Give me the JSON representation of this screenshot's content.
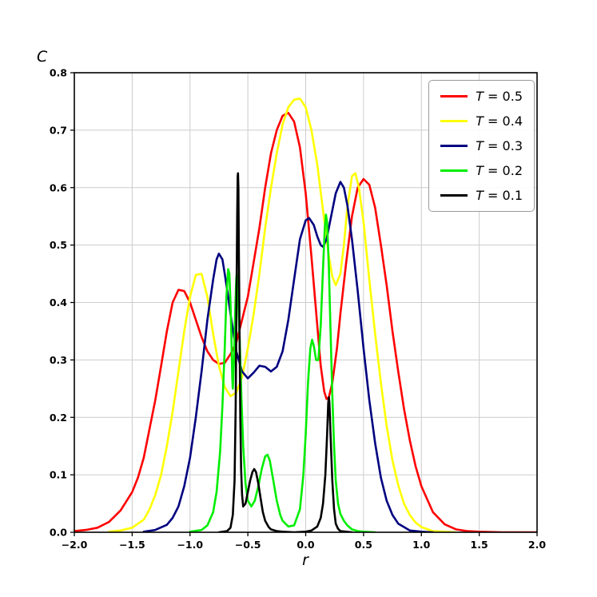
{
  "figure": {
    "background": "#ffffff"
  },
  "chart_data": {
    "type": "line",
    "title": "",
    "xlabel": "r",
    "ylabel": "C",
    "xlim": [
      -2.0,
      2.0
    ],
    "ylim": [
      0.0,
      0.8
    ],
    "grid": true,
    "grid_color": "#cccccc",
    "xticks": [
      -2.0,
      -1.5,
      -1.0,
      -0.5,
      0.0,
      0.5,
      1.0,
      1.5,
      2.0
    ],
    "xtick_labels": [
      "−2.0",
      "−1.5",
      "−1.0",
      "−0.5",
      "0.0",
      "0.5",
      "1.0",
      "1.5",
      "2.0"
    ],
    "yticks": [
      0.0,
      0.1,
      0.2,
      0.3,
      0.4,
      0.5,
      0.6,
      0.7,
      0.8
    ],
    "ytick_labels": [
      "0.0",
      "0.1",
      "0.2",
      "0.3",
      "0.4",
      "0.5",
      "0.6",
      "0.7",
      "0.8"
    ],
    "legend": {
      "position": "upper right",
      "items": [
        {
          "label": "T = 0.5",
          "color": "#ff0000"
        },
        {
          "label": "T = 0.4",
          "color": "#ffff00"
        },
        {
          "label": "T = 0.3",
          "color": "#000080"
        },
        {
          "label": "T = 0.2",
          "color": "#00ee00"
        },
        {
          "label": "T = 0.1",
          "color": "#000000"
        }
      ]
    },
    "series": [
      {
        "name": "T = 0.5",
        "color": "#ff0000",
        "points": [
          [
            -2.0,
            0.002
          ],
          [
            -1.9,
            0.004
          ],
          [
            -1.8,
            0.008
          ],
          [
            -1.7,
            0.018
          ],
          [
            -1.6,
            0.038
          ],
          [
            -1.5,
            0.07
          ],
          [
            -1.45,
            0.095
          ],
          [
            -1.4,
            0.13
          ],
          [
            -1.35,
            0.18
          ],
          [
            -1.3,
            0.23
          ],
          [
            -1.25,
            0.29
          ],
          [
            -1.2,
            0.35
          ],
          [
            -1.15,
            0.4
          ],
          [
            -1.1,
            0.422
          ],
          [
            -1.05,
            0.42
          ],
          [
            -1.0,
            0.4
          ],
          [
            -0.95,
            0.37
          ],
          [
            -0.9,
            0.34
          ],
          [
            -0.85,
            0.315
          ],
          [
            -0.8,
            0.3
          ],
          [
            -0.75,
            0.293
          ],
          [
            -0.7,
            0.295
          ],
          [
            -0.65,
            0.31
          ],
          [
            -0.6,
            0.33
          ],
          [
            -0.55,
            0.37
          ],
          [
            -0.5,
            0.41
          ],
          [
            -0.45,
            0.47
          ],
          [
            -0.4,
            0.53
          ],
          [
            -0.35,
            0.6
          ],
          [
            -0.3,
            0.66
          ],
          [
            -0.25,
            0.7
          ],
          [
            -0.2,
            0.725
          ],
          [
            -0.15,
            0.73
          ],
          [
            -0.1,
            0.715
          ],
          [
            -0.05,
            0.67
          ],
          [
            0.0,
            0.59
          ],
          [
            0.05,
            0.48
          ],
          [
            0.1,
            0.36
          ],
          [
            0.13,
            0.29
          ],
          [
            0.16,
            0.245
          ],
          [
            0.18,
            0.232
          ],
          [
            0.2,
            0.235
          ],
          [
            0.23,
            0.26
          ],
          [
            0.27,
            0.32
          ],
          [
            0.3,
            0.38
          ],
          [
            0.35,
            0.47
          ],
          [
            0.4,
            0.55
          ],
          [
            0.45,
            0.6
          ],
          [
            0.5,
            0.615
          ],
          [
            0.55,
            0.605
          ],
          [
            0.6,
            0.565
          ],
          [
            0.65,
            0.5
          ],
          [
            0.7,
            0.43
          ],
          [
            0.75,
            0.35
          ],
          [
            0.8,
            0.28
          ],
          [
            0.85,
            0.215
          ],
          [
            0.9,
            0.16
          ],
          [
            0.95,
            0.115
          ],
          [
            1.0,
            0.08
          ],
          [
            1.1,
            0.035
          ],
          [
            1.2,
            0.014
          ],
          [
            1.3,
            0.005
          ],
          [
            1.4,
            0.002
          ],
          [
            1.5,
            0.001
          ],
          [
            1.7,
            0.0
          ],
          [
            2.0,
            0.0
          ]
        ]
      },
      {
        "name": "T = 0.4",
        "color": "#ffff00",
        "points": [
          [
            -1.7,
            0.001
          ],
          [
            -1.6,
            0.003
          ],
          [
            -1.5,
            0.008
          ],
          [
            -1.4,
            0.022
          ],
          [
            -1.35,
            0.04
          ],
          [
            -1.3,
            0.065
          ],
          [
            -1.25,
            0.1
          ],
          [
            -1.2,
            0.15
          ],
          [
            -1.15,
            0.21
          ],
          [
            -1.1,
            0.28
          ],
          [
            -1.05,
            0.35
          ],
          [
            -1.0,
            0.41
          ],
          [
            -0.95,
            0.448
          ],
          [
            -0.9,
            0.45
          ],
          [
            -0.85,
            0.41
          ],
          [
            -0.8,
            0.345
          ],
          [
            -0.75,
            0.29
          ],
          [
            -0.7,
            0.253
          ],
          [
            -0.65,
            0.237
          ],
          [
            -0.6,
            0.243
          ],
          [
            -0.55,
            0.27
          ],
          [
            -0.5,
            0.32
          ],
          [
            -0.45,
            0.38
          ],
          [
            -0.4,
            0.45
          ],
          [
            -0.35,
            0.53
          ],
          [
            -0.3,
            0.6
          ],
          [
            -0.25,
            0.66
          ],
          [
            -0.2,
            0.71
          ],
          [
            -0.15,
            0.74
          ],
          [
            -0.1,
            0.753
          ],
          [
            -0.05,
            0.755
          ],
          [
            0.0,
            0.74
          ],
          [
            0.05,
            0.7
          ],
          [
            0.1,
            0.64
          ],
          [
            0.15,
            0.56
          ],
          [
            0.2,
            0.48
          ],
          [
            0.23,
            0.445
          ],
          [
            0.26,
            0.43
          ],
          [
            0.3,
            0.45
          ],
          [
            0.33,
            0.5
          ],
          [
            0.36,
            0.565
          ],
          [
            0.4,
            0.62
          ],
          [
            0.43,
            0.625
          ],
          [
            0.46,
            0.6
          ],
          [
            0.5,
            0.54
          ],
          [
            0.55,
            0.44
          ],
          [
            0.6,
            0.345
          ],
          [
            0.65,
            0.26
          ],
          [
            0.7,
            0.185
          ],
          [
            0.75,
            0.125
          ],
          [
            0.8,
            0.082
          ],
          [
            0.85,
            0.05
          ],
          [
            0.9,
            0.03
          ],
          [
            0.95,
            0.017
          ],
          [
            1.0,
            0.009
          ],
          [
            1.1,
            0.002
          ],
          [
            1.2,
            0.001
          ],
          [
            1.3,
            0.0
          ]
        ]
      },
      {
        "name": "T = 0.3",
        "color": "#000080",
        "points": [
          [
            -1.4,
            0.001
          ],
          [
            -1.3,
            0.004
          ],
          [
            -1.2,
            0.013
          ],
          [
            -1.15,
            0.025
          ],
          [
            -1.1,
            0.045
          ],
          [
            -1.05,
            0.08
          ],
          [
            -1.0,
            0.13
          ],
          [
            -0.95,
            0.2
          ],
          [
            -0.9,
            0.28
          ],
          [
            -0.85,
            0.37
          ],
          [
            -0.8,
            0.44
          ],
          [
            -0.77,
            0.475
          ],
          [
            -0.75,
            0.485
          ],
          [
            -0.72,
            0.475
          ],
          [
            -0.7,
            0.45
          ],
          [
            -0.67,
            0.41
          ],
          [
            -0.65,
            0.38
          ],
          [
            -0.6,
            0.315
          ],
          [
            -0.55,
            0.28
          ],
          [
            -0.5,
            0.268
          ],
          [
            -0.45,
            0.278
          ],
          [
            -0.4,
            0.29
          ],
          [
            -0.35,
            0.288
          ],
          [
            -0.3,
            0.28
          ],
          [
            -0.25,
            0.288
          ],
          [
            -0.2,
            0.315
          ],
          [
            -0.15,
            0.37
          ],
          [
            -0.1,
            0.44
          ],
          [
            -0.05,
            0.51
          ],
          [
            0.0,
            0.543
          ],
          [
            0.03,
            0.547
          ],
          [
            0.07,
            0.535
          ],
          [
            0.1,
            0.515
          ],
          [
            0.13,
            0.5
          ],
          [
            0.15,
            0.497
          ],
          [
            0.18,
            0.51
          ],
          [
            0.22,
            0.55
          ],
          [
            0.26,
            0.59
          ],
          [
            0.3,
            0.61
          ],
          [
            0.33,
            0.6
          ],
          [
            0.36,
            0.57
          ],
          [
            0.4,
            0.51
          ],
          [
            0.45,
            0.42
          ],
          [
            0.5,
            0.32
          ],
          [
            0.55,
            0.23
          ],
          [
            0.6,
            0.155
          ],
          [
            0.65,
            0.095
          ],
          [
            0.7,
            0.055
          ],
          [
            0.75,
            0.03
          ],
          [
            0.8,
            0.015
          ],
          [
            0.9,
            0.003
          ],
          [
            1.0,
            0.001
          ],
          [
            1.1,
            0.0
          ]
        ]
      },
      {
        "name": "T = 0.2",
        "color": "#00ee00",
        "points": [
          [
            -1.0,
            0.001
          ],
          [
            -0.9,
            0.004
          ],
          [
            -0.85,
            0.012
          ],
          [
            -0.8,
            0.035
          ],
          [
            -0.77,
            0.07
          ],
          [
            -0.74,
            0.14
          ],
          [
            -0.72,
            0.22
          ],
          [
            -0.7,
            0.32
          ],
          [
            -0.685,
            0.41
          ],
          [
            -0.67,
            0.458
          ],
          [
            -0.66,
            0.45
          ],
          [
            -0.65,
            0.4
          ],
          [
            -0.64,
            0.32
          ],
          [
            -0.635,
            0.27
          ],
          [
            -0.63,
            0.25
          ],
          [
            -0.62,
            0.3
          ],
          [
            -0.61,
            0.38
          ],
          [
            -0.6,
            0.44
          ],
          [
            -0.595,
            0.452
          ],
          [
            -0.585,
            0.42
          ],
          [
            -0.57,
            0.33
          ],
          [
            -0.555,
            0.23
          ],
          [
            -0.54,
            0.15
          ],
          [
            -0.52,
            0.085
          ],
          [
            -0.5,
            0.055
          ],
          [
            -0.47,
            0.045
          ],
          [
            -0.44,
            0.055
          ],
          [
            -0.41,
            0.08
          ],
          [
            -0.38,
            0.11
          ],
          [
            -0.35,
            0.132
          ],
          [
            -0.33,
            0.135
          ],
          [
            -0.31,
            0.125
          ],
          [
            -0.28,
            0.09
          ],
          [
            -0.25,
            0.055
          ],
          [
            -0.22,
            0.03
          ],
          [
            -0.2,
            0.02
          ],
          [
            -0.15,
            0.01
          ],
          [
            -0.1,
            0.012
          ],
          [
            -0.05,
            0.04
          ],
          [
            -0.02,
            0.1
          ],
          [
            0.0,
            0.17
          ],
          [
            0.02,
            0.26
          ],
          [
            0.04,
            0.32
          ],
          [
            0.055,
            0.335
          ],
          [
            0.07,
            0.325
          ],
          [
            0.09,
            0.3
          ],
          [
            0.11,
            0.3
          ],
          [
            0.13,
            0.36
          ],
          [
            0.15,
            0.46
          ],
          [
            0.165,
            0.53
          ],
          [
            0.175,
            0.553
          ],
          [
            0.185,
            0.54
          ],
          [
            0.2,
            0.46
          ],
          [
            0.215,
            0.35
          ],
          [
            0.23,
            0.24
          ],
          [
            0.245,
            0.15
          ],
          [
            0.26,
            0.09
          ],
          [
            0.28,
            0.05
          ],
          [
            0.3,
            0.032
          ],
          [
            0.33,
            0.02
          ],
          [
            0.36,
            0.012
          ],
          [
            0.4,
            0.005
          ],
          [
            0.45,
            0.002
          ],
          [
            0.5,
            0.001
          ],
          [
            0.6,
            0.0
          ]
        ]
      },
      {
        "name": "T = 0.1",
        "color": "#000000",
        "points": [
          [
            -0.75,
            0.0
          ],
          [
            -0.68,
            0.002
          ],
          [
            -0.65,
            0.008
          ],
          [
            -0.63,
            0.03
          ],
          [
            -0.615,
            0.09
          ],
          [
            -0.605,
            0.22
          ],
          [
            -0.598,
            0.4
          ],
          [
            -0.592,
            0.55
          ],
          [
            -0.588,
            0.62
          ],
          [
            -0.585,
            0.625
          ],
          [
            -0.582,
            0.6
          ],
          [
            -0.578,
            0.5
          ],
          [
            -0.572,
            0.35
          ],
          [
            -0.565,
            0.2
          ],
          [
            -0.558,
            0.11
          ],
          [
            -0.55,
            0.065
          ],
          [
            -0.54,
            0.045
          ],
          [
            -0.52,
            0.05
          ],
          [
            -0.5,
            0.07
          ],
          [
            -0.48,
            0.09
          ],
          [
            -0.46,
            0.105
          ],
          [
            -0.445,
            0.11
          ],
          [
            -0.43,
            0.105
          ],
          [
            -0.41,
            0.085
          ],
          [
            -0.39,
            0.06
          ],
          [
            -0.37,
            0.035
          ],
          [
            -0.35,
            0.02
          ],
          [
            -0.32,
            0.009
          ],
          [
            -0.3,
            0.005
          ],
          [
            -0.25,
            0.002
          ],
          [
            -0.2,
            0.001
          ],
          [
            -0.1,
            0.0
          ],
          [
            0.0,
            0.001
          ],
          [
            0.05,
            0.003
          ],
          [
            0.1,
            0.01
          ],
          [
            0.13,
            0.025
          ],
          [
            0.15,
            0.05
          ],
          [
            0.17,
            0.1
          ],
          [
            0.185,
            0.17
          ],
          [
            0.195,
            0.225
          ],
          [
            0.2,
            0.235
          ],
          [
            0.205,
            0.225
          ],
          [
            0.215,
            0.17
          ],
          [
            0.23,
            0.09
          ],
          [
            0.245,
            0.04
          ],
          [
            0.26,
            0.015
          ],
          [
            0.28,
            0.006
          ],
          [
            0.3,
            0.002
          ],
          [
            0.35,
            0.001
          ],
          [
            0.4,
            0.0
          ]
        ]
      }
    ]
  }
}
